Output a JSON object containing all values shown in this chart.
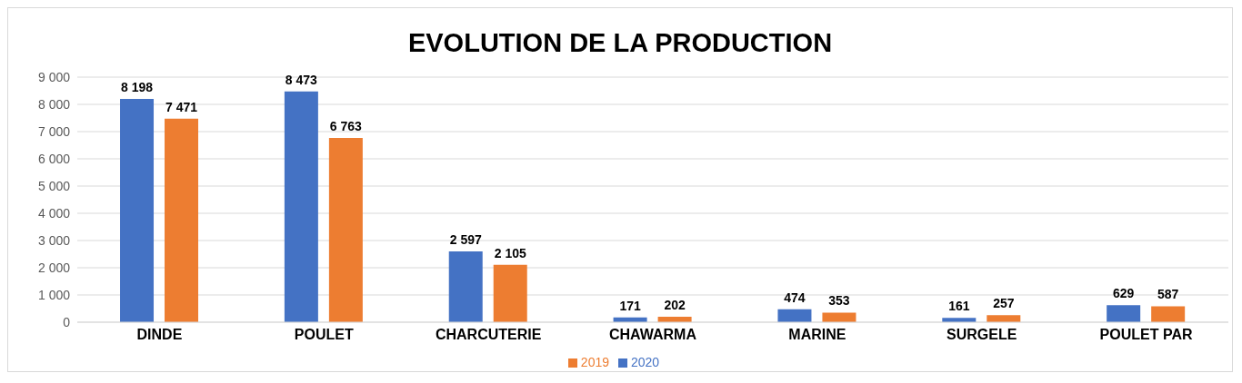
{
  "chart_data": {
    "type": "bar",
    "title": "EVOLUTION DE LA PRODUCTION",
    "categories": [
      "DINDE",
      "POULET",
      "CHARCUTERIE",
      "CHAWARMA",
      "MARINE",
      "SURGELE",
      "POULET PAR"
    ],
    "series": [
      {
        "name": "2020",
        "color": "#4472c4",
        "values": [
          8198,
          8473,
          2597,
          171,
          474,
          161,
          629
        ],
        "value_labels": [
          "8 198",
          "8 473",
          "2 597",
          "171",
          "474",
          "161",
          "629"
        ]
      },
      {
        "name": "2019",
        "color": "#ed7d31",
        "values": [
          7471,
          6763,
          2105,
          202,
          353,
          257,
          587
        ],
        "value_labels": [
          "7 471",
          "6 763",
          "2 105",
          "202",
          "353",
          "257",
          "587"
        ]
      }
    ],
    "ylim": [
      0,
      9000
    ],
    "yticks": [
      {
        "value": 0,
        "label": "0"
      },
      {
        "value": 1000,
        "label": "1 000"
      },
      {
        "value": 2000,
        "label": "2 000"
      },
      {
        "value": 3000,
        "label": "3 000"
      },
      {
        "value": 4000,
        "label": "4 000"
      },
      {
        "value": 5000,
        "label": "5 000"
      },
      {
        "value": 6000,
        "label": "6 000"
      },
      {
        "value": 7000,
        "label": "7 000"
      },
      {
        "value": 8000,
        "label": "8 000"
      },
      {
        "value": 9000,
        "label": "9 000"
      }
    ],
    "grid": "y",
    "legend": "bottom"
  }
}
